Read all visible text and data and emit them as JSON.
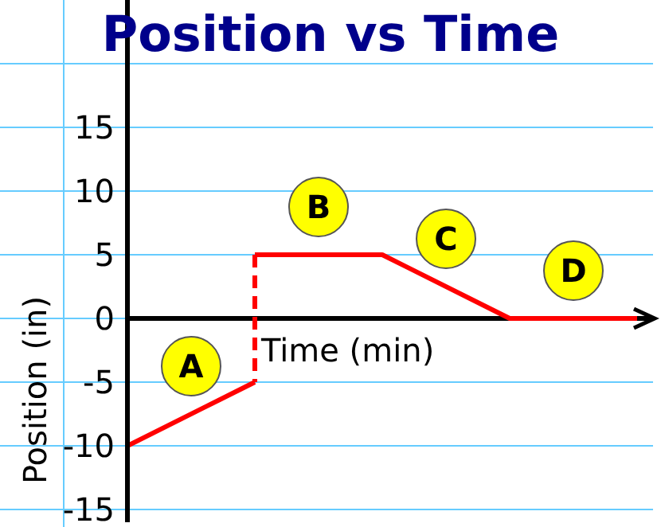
{
  "chart_data": {
    "type": "line",
    "title": "Position vs Time",
    "xlabel": "Time (min)",
    "ylabel": "Position (in)",
    "categories": [
      null,
      null,
      null,
      null,
      null
    ],
    "ylim": [
      -16,
      25
    ],
    "yticks": [
      -15,
      -10,
      -5,
      0,
      5,
      10,
      15,
      {
        "value": 20,
        "label": null
      }
    ],
    "tick_labels": "y",
    "grid": true,
    "marker": "none",
    "series": [
      {
        "color": "#ff0000",
        "values": [
          -10,
          -5,
          null,
          null,
          null
        ]
      },
      {
        "color": "#ff0000",
        "values": [
          null,
          5,
          5,
          0,
          0
        ]
      }
    ],
    "ref_lines": [
      {
        "axis": "y",
        "value": 0,
        "color": "#000000"
      }
    ],
    "annotations": [
      "A",
      "B",
      "C",
      "D"
    ]
  }
}
